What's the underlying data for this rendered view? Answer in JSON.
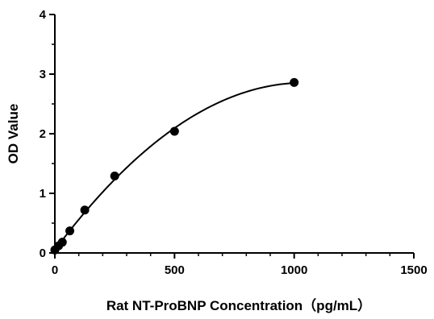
{
  "chart_data": {
    "type": "scatter",
    "title": "",
    "xlabel": "Rat NT-ProBNP Concentration（pg/mL）",
    "ylabel": "OD Value",
    "xlim": [
      0,
      1500
    ],
    "ylim": [
      0,
      4
    ],
    "xticks": [
      0,
      500,
      1000,
      1500
    ],
    "yticks": [
      0,
      1,
      2,
      3,
      4
    ],
    "grid": false,
    "legend": "none",
    "fit_curve": true,
    "series": [
      {
        "x": [
          0,
          15.6,
          31.25,
          62.5,
          125,
          250,
          500,
          1000
        ],
        "y": [
          0.05,
          0.12,
          0.18,
          0.37,
          0.72,
          1.29,
          2.04,
          2.86
        ]
      }
    ],
    "colors": {
      "points": "#000000",
      "curve": "#000000",
      "axis": "#000000"
    }
  }
}
